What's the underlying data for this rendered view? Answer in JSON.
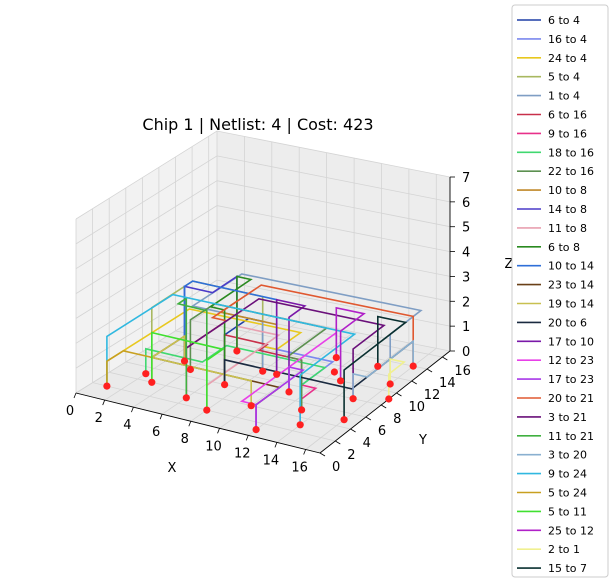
{
  "chart_data": {
    "type": "line",
    "projection": "3d",
    "title": "Chip 1  | Netlist: 4  | Cost: 423",
    "xlabel": "X",
    "ylabel": "Y",
    "zlabel": "Z",
    "xlim": [
      0,
      17
    ],
    "ylim": [
      0,
      17
    ],
    "zlim": [
      0,
      7
    ],
    "xticks": [
      "0",
      "2",
      "4",
      "6",
      "8",
      "10",
      "12",
      "14",
      "16"
    ],
    "yticks": [
      "0",
      "2",
      "4",
      "6",
      "8",
      "10",
      "12",
      "14",
      "16"
    ],
    "zticks": [
      "0",
      "1",
      "2",
      "3",
      "4",
      "5",
      "6",
      "7"
    ],
    "grid": true,
    "legend_position": "right",
    "gate_color": "#ff2020",
    "gates": [
      [
        1,
        2,
        0
      ],
      [
        2,
        5,
        0
      ],
      [
        3,
        4,
        0
      ],
      [
        4,
        7,
        0
      ],
      [
        6,
        3,
        0
      ],
      [
        7,
        6,
        0
      ],
      [
        8,
        2,
        0
      ],
      [
        9,
        9,
        0
      ],
      [
        10,
        4,
        0
      ],
      [
        11,
        7,
        0
      ],
      [
        12,
        1,
        0
      ],
      [
        13,
        5,
        0
      ],
      [
        14,
        3,
        0
      ],
      [
        15,
        8,
        0
      ],
      [
        16,
        5,
        0
      ],
      [
        16,
        11,
        0
      ],
      [
        17,
        9,
        0
      ],
      [
        11,
        13,
        0
      ],
      [
        14,
        13,
        0
      ],
      [
        16,
        14,
        0
      ],
      [
        5,
        11,
        0
      ],
      [
        8,
        9,
        0
      ],
      [
        3,
        8,
        0
      ],
      [
        12,
        11,
        0
      ],
      [
        13,
        10,
        0
      ]
    ],
    "series": [
      {
        "name": "6 to 4",
        "color": "#1f3fa6",
        "points": [
          [
            7,
            6,
            0
          ],
          [
            7,
            6,
            2
          ],
          [
            7,
            9,
            2
          ],
          [
            8,
            9,
            2
          ],
          [
            8,
            9,
            0
          ]
        ]
      },
      {
        "name": "16 to 4",
        "color": "#7b88ee",
        "points": [
          [
            13,
            5,
            0
          ],
          [
            13,
            5,
            1
          ],
          [
            13,
            9,
            1
          ],
          [
            8,
            9,
            1
          ],
          [
            8,
            9,
            0
          ]
        ]
      },
      {
        "name": "24 to 4",
        "color": "#e8c81e",
        "points": [
          [
            1,
            2,
            0
          ],
          [
            1,
            2,
            1
          ],
          [
            1,
            12,
            1
          ],
          [
            9,
            12,
            1
          ],
          [
            9,
            9,
            1
          ],
          [
            8,
            9,
            1
          ],
          [
            8,
            9,
            0
          ]
        ]
      },
      {
        "name": "5 to 4",
        "color": "#a8b860",
        "points": [
          [
            3,
            4,
            0
          ],
          [
            3,
            4,
            3
          ],
          [
            3,
            9,
            3
          ],
          [
            8,
            9,
            3
          ],
          [
            8,
            9,
            0
          ]
        ]
      },
      {
        "name": "1 to 4",
        "color": "#7f9ec4",
        "points": [
          [
            16,
            11,
            0
          ],
          [
            16,
            11,
            2
          ],
          [
            16,
            15,
            2
          ],
          [
            3,
            15,
            2
          ],
          [
            3,
            9,
            2
          ],
          [
            8,
            9,
            2
          ],
          [
            8,
            9,
            0
          ]
        ]
      },
      {
        "name": "6 to 16",
        "color": "#c8304a",
        "points": [
          [
            7,
            6,
            0
          ],
          [
            7,
            6,
            2
          ],
          [
            10,
            6,
            2
          ],
          [
            10,
            5,
            2
          ],
          [
            13,
            5,
            2
          ],
          [
            13,
            5,
            0
          ]
        ]
      },
      {
        "name": "9 to 16",
        "color": "#e8308a",
        "points": [
          [
            14,
            3,
            0
          ],
          [
            14,
            3,
            1
          ],
          [
            14,
            5,
            1
          ],
          [
            13,
            5,
            1
          ],
          [
            13,
            5,
            0
          ]
        ]
      },
      {
        "name": "18 to 16",
        "color": "#40d870",
        "points": [
          [
            2,
            5,
            0
          ],
          [
            2,
            5,
            1
          ],
          [
            6,
            5,
            1
          ],
          [
            6,
            8,
            1
          ],
          [
            13,
            8,
            1
          ],
          [
            13,
            5,
            1
          ],
          [
            13,
            5,
            0
          ]
        ]
      },
      {
        "name": "22 to 16",
        "color": "#5c9050",
        "points": [
          [
            4,
            7,
            0
          ],
          [
            4,
            7,
            2
          ],
          [
            4,
            10,
            2
          ],
          [
            12,
            10,
            2
          ],
          [
            12,
            5,
            2
          ],
          [
            13,
            5,
            2
          ],
          [
            13,
            5,
            0
          ]
        ]
      },
      {
        "name": "10 to 8",
        "color": "#c08828",
        "points": [
          [
            9,
            9,
            0
          ],
          [
            9,
            9,
            2
          ],
          [
            5,
            9,
            2
          ],
          [
            5,
            11,
            2
          ],
          [
            5,
            11,
            0
          ]
        ]
      },
      {
        "name": "14 to 8",
        "color": "#4a3ac8",
        "points": [
          [
            3,
            8,
            0
          ],
          [
            3,
            8,
            3
          ],
          [
            5,
            8,
            3
          ],
          [
            5,
            11,
            3
          ],
          [
            5,
            11,
            0
          ]
        ]
      },
      {
        "name": "11 to 8",
        "color": "#e8a0b0",
        "points": [
          [
            8,
            2,
            0
          ],
          [
            8,
            2,
            1
          ],
          [
            8,
            11,
            1
          ],
          [
            5,
            11,
            1
          ],
          [
            5,
            11,
            0
          ]
        ]
      },
      {
        "name": "6 to 8",
        "color": "#2a8a20",
        "points": [
          [
            7,
            6,
            0
          ],
          [
            7,
            6,
            3
          ],
          [
            6,
            6,
            3
          ],
          [
            6,
            11,
            3
          ],
          [
            5,
            11,
            3
          ],
          [
            5,
            11,
            0
          ]
        ]
      },
      {
        "name": "10 to 14",
        "color": "#2f6fd8",
        "points": [
          [
            9,
            9,
            0
          ],
          [
            9,
            9,
            3
          ],
          [
            3,
            9,
            3
          ],
          [
            3,
            8,
            3
          ],
          [
            3,
            8,
            0
          ]
        ]
      },
      {
        "name": "23 to 14",
        "color": "#6a4018",
        "points": [
          [
            12,
            1,
            0
          ],
          [
            12,
            1,
            1
          ],
          [
            12,
            4,
            1
          ],
          [
            3,
            4,
            1
          ],
          [
            3,
            8,
            1
          ],
          [
            3,
            8,
            0
          ]
        ]
      },
      {
        "name": "19 to 14",
        "color": "#c8c050",
        "points": [
          [
            10,
            4,
            0
          ],
          [
            10,
            4,
            1
          ],
          [
            3,
            4,
            1
          ],
          [
            3,
            8,
            1
          ],
          [
            3,
            8,
            0
          ]
        ]
      },
      {
        "name": "20 to 6",
        "color": "#1a2a40",
        "points": [
          [
            16,
            14,
            0
          ],
          [
            16,
            14,
            1
          ],
          [
            16,
            6,
            1
          ],
          [
            7,
            6,
            1
          ],
          [
            7,
            6,
            0
          ]
        ]
      },
      {
        "name": "17 to 10",
        "color": "#7a18a8",
        "points": [
          [
            11,
            7,
            0
          ],
          [
            11,
            7,
            3
          ],
          [
            11,
            9,
            3
          ],
          [
            9,
            9,
            3
          ],
          [
            9,
            9,
            0
          ]
        ]
      },
      {
        "name": "12 to 23",
        "color": "#e840e8",
        "points": [
          [
            11,
            13,
            0
          ],
          [
            11,
            13,
            1
          ],
          [
            11,
            1,
            1
          ],
          [
            12,
            1,
            1
          ],
          [
            12,
            1,
            0
          ]
        ]
      },
      {
        "name": "17 to 23",
        "color": "#a838e8",
        "points": [
          [
            11,
            7,
            0
          ],
          [
            11,
            7,
            1
          ],
          [
            12,
            7,
            1
          ],
          [
            12,
            1,
            1
          ],
          [
            12,
            1,
            0
          ]
        ]
      },
      {
        "name": "20 to 21",
        "color": "#e05830",
        "points": [
          [
            16,
            14,
            0
          ],
          [
            16,
            14,
            2
          ],
          [
            5,
            14,
            2
          ],
          [
            5,
            8,
            2
          ],
          [
            6,
            8,
            2
          ],
          [
            6,
            3,
            2
          ],
          [
            6,
            3,
            0
          ]
        ]
      },
      {
        "name": "3 to 21",
        "color": "#6a107a",
        "points": [
          [
            15,
            8,
            0
          ],
          [
            15,
            8,
            2
          ],
          [
            15,
            12,
            2
          ],
          [
            6,
            12,
            2
          ],
          [
            6,
            3,
            2
          ],
          [
            6,
            3,
            0
          ]
        ]
      },
      {
        "name": "11 to 21",
        "color": "#40b040",
        "points": [
          [
            8,
            2,
            0
          ],
          [
            8,
            2,
            4
          ],
          [
            6,
            2,
            4
          ],
          [
            6,
            3,
            4
          ],
          [
            6,
            3,
            0
          ]
        ]
      },
      {
        "name": "3 to 20",
        "color": "#8ab0d0",
        "points": [
          [
            15,
            8,
            0
          ],
          [
            15,
            8,
            1
          ],
          [
            16,
            8,
            1
          ],
          [
            16,
            14,
            1
          ],
          [
            16,
            14,
            0
          ]
        ]
      },
      {
        "name": "9 to 24",
        "color": "#30b8e0",
        "points": [
          [
            14,
            3,
            0
          ],
          [
            14,
            3,
            2
          ],
          [
            14,
            10,
            2
          ],
          [
            1,
            10,
            2
          ],
          [
            1,
            2,
            2
          ],
          [
            1,
            2,
            0
          ]
        ]
      },
      {
        "name": "5 to 24",
        "color": "#c8a020",
        "points": [
          [
            3,
            4,
            0
          ],
          [
            3,
            4,
            1
          ],
          [
            1,
            4,
            1
          ],
          [
            1,
            2,
            1
          ],
          [
            1,
            2,
            0
          ]
        ]
      },
      {
        "name": "5 to 11",
        "color": "#40e030",
        "points": [
          [
            3,
            4,
            0
          ],
          [
            3,
            4,
            2
          ],
          [
            8,
            4,
            2
          ],
          [
            8,
            2,
            2
          ],
          [
            8,
            2,
            0
          ]
        ]
      },
      {
        "name": "25 to 12",
        "color": "#b020c8",
        "points": [
          [
            13,
            10,
            0
          ],
          [
            13,
            10,
            2
          ],
          [
            13,
            13,
            2
          ],
          [
            11,
            13,
            2
          ],
          [
            11,
            13,
            0
          ]
        ]
      },
      {
        "name": "2 to 1",
        "color": "#f0f090",
        "points": [
          [
            17,
            9,
            0
          ],
          [
            17,
            9,
            1
          ],
          [
            17,
            11,
            1
          ],
          [
            16,
            11,
            1
          ],
          [
            16,
            11,
            0
          ]
        ]
      },
      {
        "name": "15 to 7",
        "color": "#0a3030",
        "points": [
          [
            14,
            13,
            0
          ],
          [
            14,
            13,
            2
          ],
          [
            16,
            13,
            2
          ],
          [
            16,
            5,
            2
          ],
          [
            16,
            5,
            0
          ]
        ]
      }
    ]
  }
}
